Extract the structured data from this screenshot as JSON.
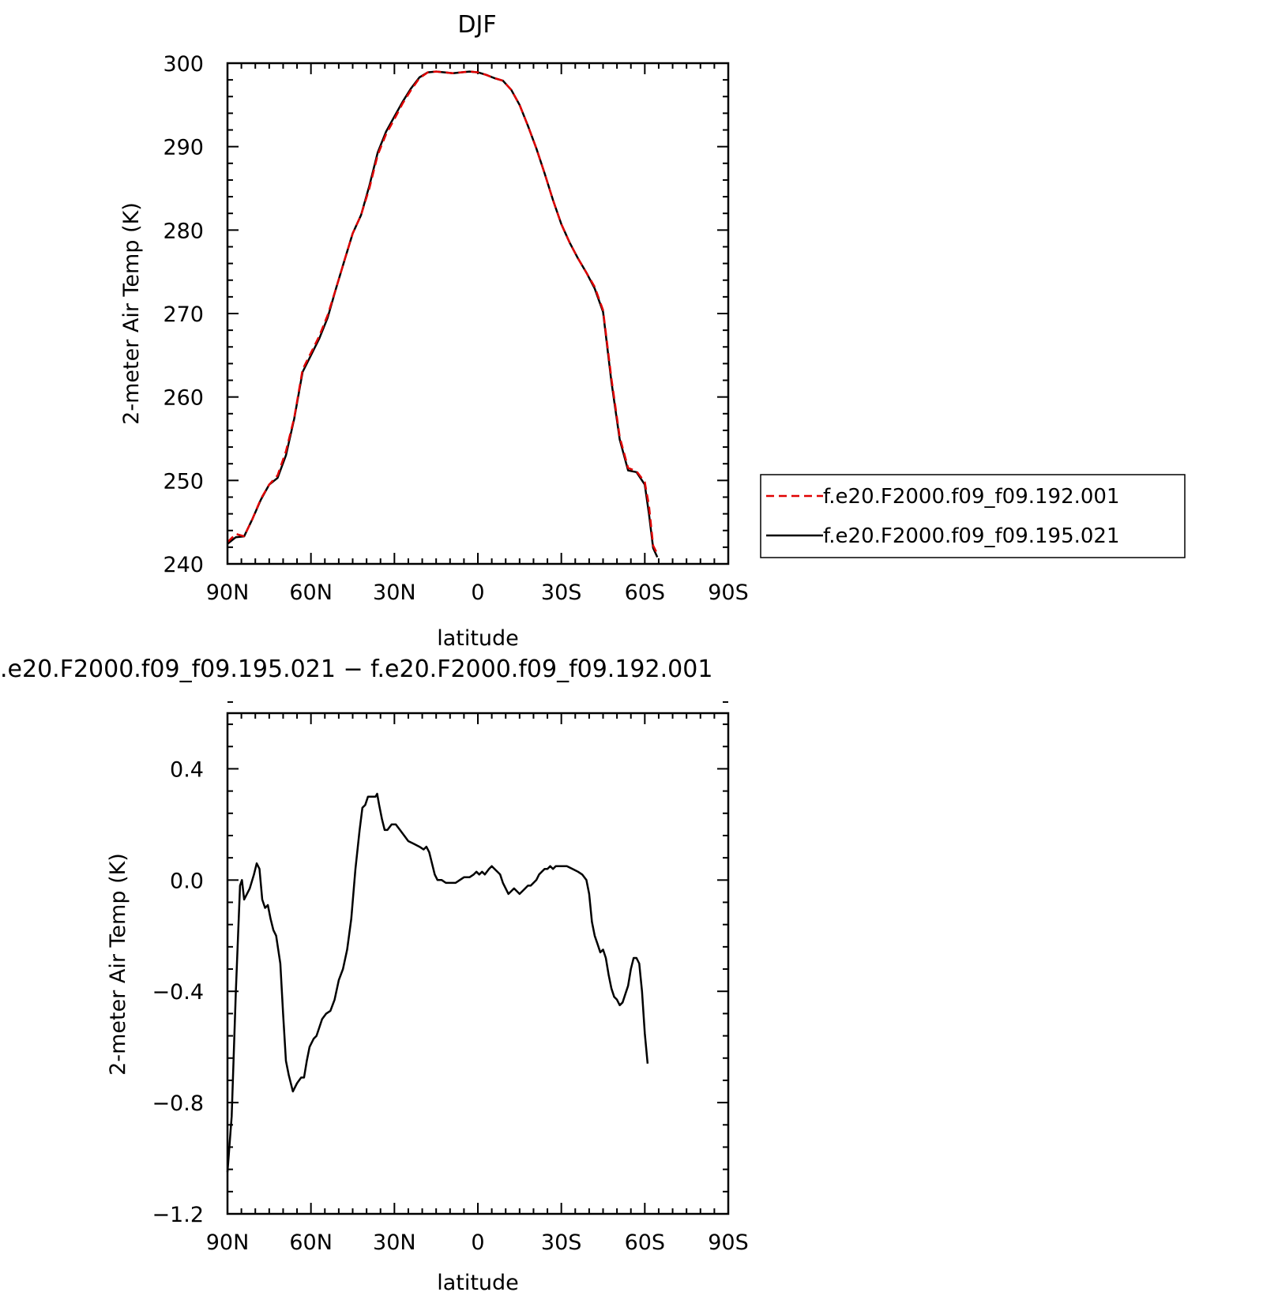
{
  "chart_data": [
    {
      "type": "line",
      "title": "DJF",
      "xlabel": "latitude",
      "ylabel": "2-meter Air Temp (K)",
      "xlim": [
        90,
        -90
      ],
      "ylim": [
        240,
        300
      ],
      "xticks": [
        90,
        60,
        30,
        0,
        -30,
        -60,
        -90
      ],
      "xtick_labels": [
        "90N",
        "60N",
        "30N",
        "0",
        "30S",
        "60S",
        "90S"
      ],
      "yticks": [
        240,
        250,
        260,
        270,
        280,
        290,
        300
      ],
      "ytick_labels": [
        "240",
        "250",
        "260",
        "270",
        "280",
        "290",
        "300"
      ],
      "legend_position": "right",
      "series": [
        {
          "name": "f.e20.F2000.f09_f09.192.001",
          "color": "#e00000",
          "style": "dashed",
          "points": [
            [
              90,
              242.6
            ],
            [
              87,
              243.6
            ],
            [
              84,
              243.3
            ],
            [
              81,
              245.4
            ],
            [
              78,
              247.8
            ],
            [
              75,
              249.5
            ],
            [
              72,
              250.6
            ],
            [
              69,
              253.5
            ],
            [
              66,
              257.5
            ],
            [
              63,
              263.3
            ],
            [
              60,
              265.3
            ],
            [
              57,
              267.3
            ],
            [
              54,
              269.8
            ],
            [
              51,
              273.0
            ],
            [
              48,
              276.3
            ],
            [
              45,
              279.6
            ],
            [
              42,
              281.8
            ],
            [
              39,
              285.0
            ],
            [
              36,
              289.0
            ],
            [
              33,
              291.5
            ],
            [
              30,
              293.3
            ],
            [
              27,
              295.2
            ],
            [
              24,
              296.8
            ],
            [
              21,
              298.2
            ],
            [
              18,
              298.9
            ],
            [
              15,
              299.0
            ],
            [
              12,
              298.9
            ],
            [
              9,
              298.8
            ],
            [
              6,
              298.9
            ],
            [
              3,
              299.0
            ],
            [
              0,
              298.9
            ],
            [
              -3,
              298.6
            ],
            [
              -6,
              298.2
            ],
            [
              -9,
              297.9
            ],
            [
              -12,
              296.8
            ],
            [
              -15,
              295.0
            ],
            [
              -18,
              292.5
            ],
            [
              -21,
              289.8
            ],
            [
              -24,
              286.8
            ],
            [
              -27,
              283.6
            ],
            [
              -30,
              280.7
            ],
            [
              -33,
              278.5
            ],
            [
              -36,
              276.6
            ],
            [
              -39,
              274.9
            ],
            [
              -42,
              273.2
            ],
            [
              -45,
              270.4
            ],
            [
              -48,
              262.2
            ],
            [
              -51,
              255.2
            ],
            [
              -54,
              251.5
            ],
            [
              -57,
              251.1
            ],
            [
              -60,
              249.8
            ],
            [
              -61.5,
              247.0
            ],
            [
              -63,
              242.2
            ],
            [
              -64.5,
              241.2
            ]
          ]
        },
        {
          "name": "f.e20.F2000.f09_f09.195.021",
          "color": "#000000",
          "style": "solid",
          "points": [
            [
              90,
              242.4
            ],
            [
              87,
              243.2
            ],
            [
              84,
              243.3
            ],
            [
              81,
              245.4
            ],
            [
              78,
              247.7
            ],
            [
              75,
              249.5
            ],
            [
              72,
              250.3
            ],
            [
              69,
              253.0
            ],
            [
              66,
              257.4
            ],
            [
              63,
              263.0
            ],
            [
              60,
              265.0
            ],
            [
              57,
              267.0
            ],
            [
              54,
              269.5
            ],
            [
              51,
              273.0
            ],
            [
              48,
              276.3
            ],
            [
              45,
              279.6
            ],
            [
              42,
              281.8
            ],
            [
              39,
              285.3
            ],
            [
              36,
              289.3
            ],
            [
              33,
              291.8
            ],
            [
              30,
              293.6
            ],
            [
              27,
              295.4
            ],
            [
              24,
              297.0
            ],
            [
              21,
              298.3
            ],
            [
              18,
              298.9
            ],
            [
              15,
              299.0
            ],
            [
              12,
              298.9
            ],
            [
              9,
              298.8
            ],
            [
              6,
              298.9
            ],
            [
              3,
              299.0
            ],
            [
              0,
              298.9
            ],
            [
              -3,
              298.6
            ],
            [
              -6,
              298.2
            ],
            [
              -9,
              297.9
            ],
            [
              -12,
              296.8
            ],
            [
              -15,
              295.0
            ],
            [
              -18,
              292.5
            ],
            [
              -21,
              289.8
            ],
            [
              -24,
              286.8
            ],
            [
              -27,
              283.6
            ],
            [
              -30,
              280.7
            ],
            [
              -33,
              278.5
            ],
            [
              -36,
              276.6
            ],
            [
              -39,
              274.9
            ],
            [
              -42,
              273.0
            ],
            [
              -45,
              270.2
            ],
            [
              -48,
              261.8
            ],
            [
              -51,
              254.9
            ],
            [
              -54,
              251.2
            ],
            [
              -57,
              251.0
            ],
            [
              -60,
              249.5
            ],
            [
              -61.5,
              246.0
            ],
            [
              -63,
              241.9
            ],
            [
              -64.5,
              240.8
            ]
          ]
        }
      ]
    },
    {
      "type": "line",
      "title": ".e20.F2000.f09_f09.195.021 − f.e20.F2000.f09_f09.192.001",
      "xlabel": "latitude",
      "ylabel": "2-meter Air Temp (K)",
      "xlim": [
        90,
        -90
      ],
      "ylim": [
        -1.2,
        0.6
      ],
      "xticks": [
        90,
        60,
        30,
        0,
        -30,
        -60,
        -90
      ],
      "xtick_labels": [
        "90N",
        "60N",
        "30N",
        "0",
        "30S",
        "60S",
        "90S"
      ],
      "yticks": [
        -1.2,
        -0.8,
        -0.4,
        0.0,
        0.4
      ],
      "ytick_labels": [
        "−1.2",
        "−0.8",
        "−0.4",
        "0.0",
        "0.4"
      ],
      "series": [
        {
          "color": "#000000",
          "style": "solid",
          "points": [
            [
              90,
              -1.05
            ],
            [
              88.5,
              -0.85
            ],
            [
              87,
              -0.4
            ],
            [
              85.5,
              -0.02
            ],
            [
              84.8,
              0.0
            ],
            [
              84,
              -0.07
            ],
            [
              82,
              -0.03
            ],
            [
              80.5,
              0.02
            ],
            [
              79.5,
              0.06
            ],
            [
              78.5,
              0.04
            ],
            [
              77.5,
              -0.07
            ],
            [
              76.5,
              -0.1
            ],
            [
              75.5,
              -0.09
            ],
            [
              74.5,
              -0.14
            ],
            [
              73.5,
              -0.18
            ],
            [
              72.5,
              -0.2
            ],
            [
              71,
              -0.3
            ],
            [
              70,
              -0.48
            ],
            [
              69,
              -0.65
            ],
            [
              68,
              -0.7
            ],
            [
              66.5,
              -0.76
            ],
            [
              65,
              -0.73
            ],
            [
              63.5,
              -0.71
            ],
            [
              62.5,
              -0.71
            ],
            [
              61.5,
              -0.65
            ],
            [
              60.5,
              -0.6
            ],
            [
              59,
              -0.57
            ],
            [
              58,
              -0.56
            ],
            [
              56,
              -0.5
            ],
            [
              54.5,
              -0.48
            ],
            [
              53,
              -0.47
            ],
            [
              51.5,
              -0.43
            ],
            [
              50,
              -0.36
            ],
            [
              48.5,
              -0.32
            ],
            [
              47,
              -0.25
            ],
            [
              45.5,
              -0.14
            ],
            [
              44,
              0.04
            ],
            [
              42.5,
              0.18
            ],
            [
              41.5,
              0.26
            ],
            [
              40.5,
              0.27
            ],
            [
              39.5,
              0.3
            ],
            [
              38.5,
              0.3
            ],
            [
              37.5,
              0.3
            ],
            [
              36.8,
              0.3
            ],
            [
              36.2,
              0.31
            ],
            [
              35.5,
              0.27
            ],
            [
              34.5,
              0.22
            ],
            [
              33.5,
              0.18
            ],
            [
              32.5,
              0.18
            ],
            [
              31,
              0.2
            ],
            [
              29.5,
              0.2
            ],
            [
              28,
              0.18
            ],
            [
              26.5,
              0.16
            ],
            [
              25,
              0.14
            ],
            [
              23,
              0.13
            ],
            [
              21,
              0.12
            ],
            [
              19.5,
              0.11
            ],
            [
              18.5,
              0.12
            ],
            [
              17.5,
              0.1
            ],
            [
              16.5,
              0.06
            ],
            [
              15.5,
              0.02
            ],
            [
              14.5,
              0.0
            ],
            [
              13,
              0.0
            ],
            [
              11.5,
              -0.01
            ],
            [
              10,
              -0.01
            ],
            [
              8,
              -0.01
            ],
            [
              6.5,
              0.0
            ],
            [
              5,
              0.01
            ],
            [
              3,
              0.01
            ],
            [
              1.5,
              0.02
            ],
            [
              0.5,
              0.03
            ],
            [
              -0.5,
              0.02
            ],
            [
              -1.5,
              0.03
            ],
            [
              -2.5,
              0.02
            ],
            [
              -4,
              0.04
            ],
            [
              -5,
              0.05
            ],
            [
              -6,
              0.04
            ],
            [
              -7,
              0.03
            ],
            [
              -8,
              0.02
            ],
            [
              -9,
              -0.01
            ],
            [
              -10,
              -0.03
            ],
            [
              -11,
              -0.05
            ],
            [
              -12,
              -0.04
            ],
            [
              -13,
              -0.03
            ],
            [
              -14,
              -0.04
            ],
            [
              -15,
              -0.05
            ],
            [
              -16,
              -0.04
            ],
            [
              -17,
              -0.03
            ],
            [
              -18,
              -0.02
            ],
            [
              -19,
              -0.02
            ],
            [
              -20,
              -0.01
            ],
            [
              -21,
              0.0
            ],
            [
              -22,
              0.02
            ],
            [
              -23,
              0.03
            ],
            [
              -24,
              0.04
            ],
            [
              -25,
              0.04
            ],
            [
              -26,
              0.05
            ],
            [
              -27,
              0.04
            ],
            [
              -28,
              0.05
            ],
            [
              -30,
              0.05
            ],
            [
              -32,
              0.05
            ],
            [
              -34,
              0.04
            ],
            [
              -36,
              0.03
            ],
            [
              -37.5,
              0.02
            ],
            [
              -39,
              0.0
            ],
            [
              -40,
              -0.05
            ],
            [
              -41,
              -0.15
            ],
            [
              -42,
              -0.2
            ],
            [
              -43,
              -0.23
            ],
            [
              -44,
              -0.26
            ],
            [
              -45,
              -0.25
            ],
            [
              -46,
              -0.28
            ],
            [
              -47,
              -0.34
            ],
            [
              -48,
              -0.39
            ],
            [
              -49,
              -0.42
            ],
            [
              -50,
              -0.43
            ],
            [
              -51,
              -0.45
            ],
            [
              -52,
              -0.44
            ],
            [
              -53,
              -0.41
            ],
            [
              -54,
              -0.38
            ],
            [
              -55,
              -0.32
            ],
            [
              -56,
              -0.28
            ],
            [
              -57,
              -0.28
            ],
            [
              -58,
              -0.3
            ],
            [
              -59,
              -0.4
            ],
            [
              -60,
              -0.55
            ],
            [
              -61,
              -0.66
            ]
          ]
        }
      ]
    }
  ]
}
